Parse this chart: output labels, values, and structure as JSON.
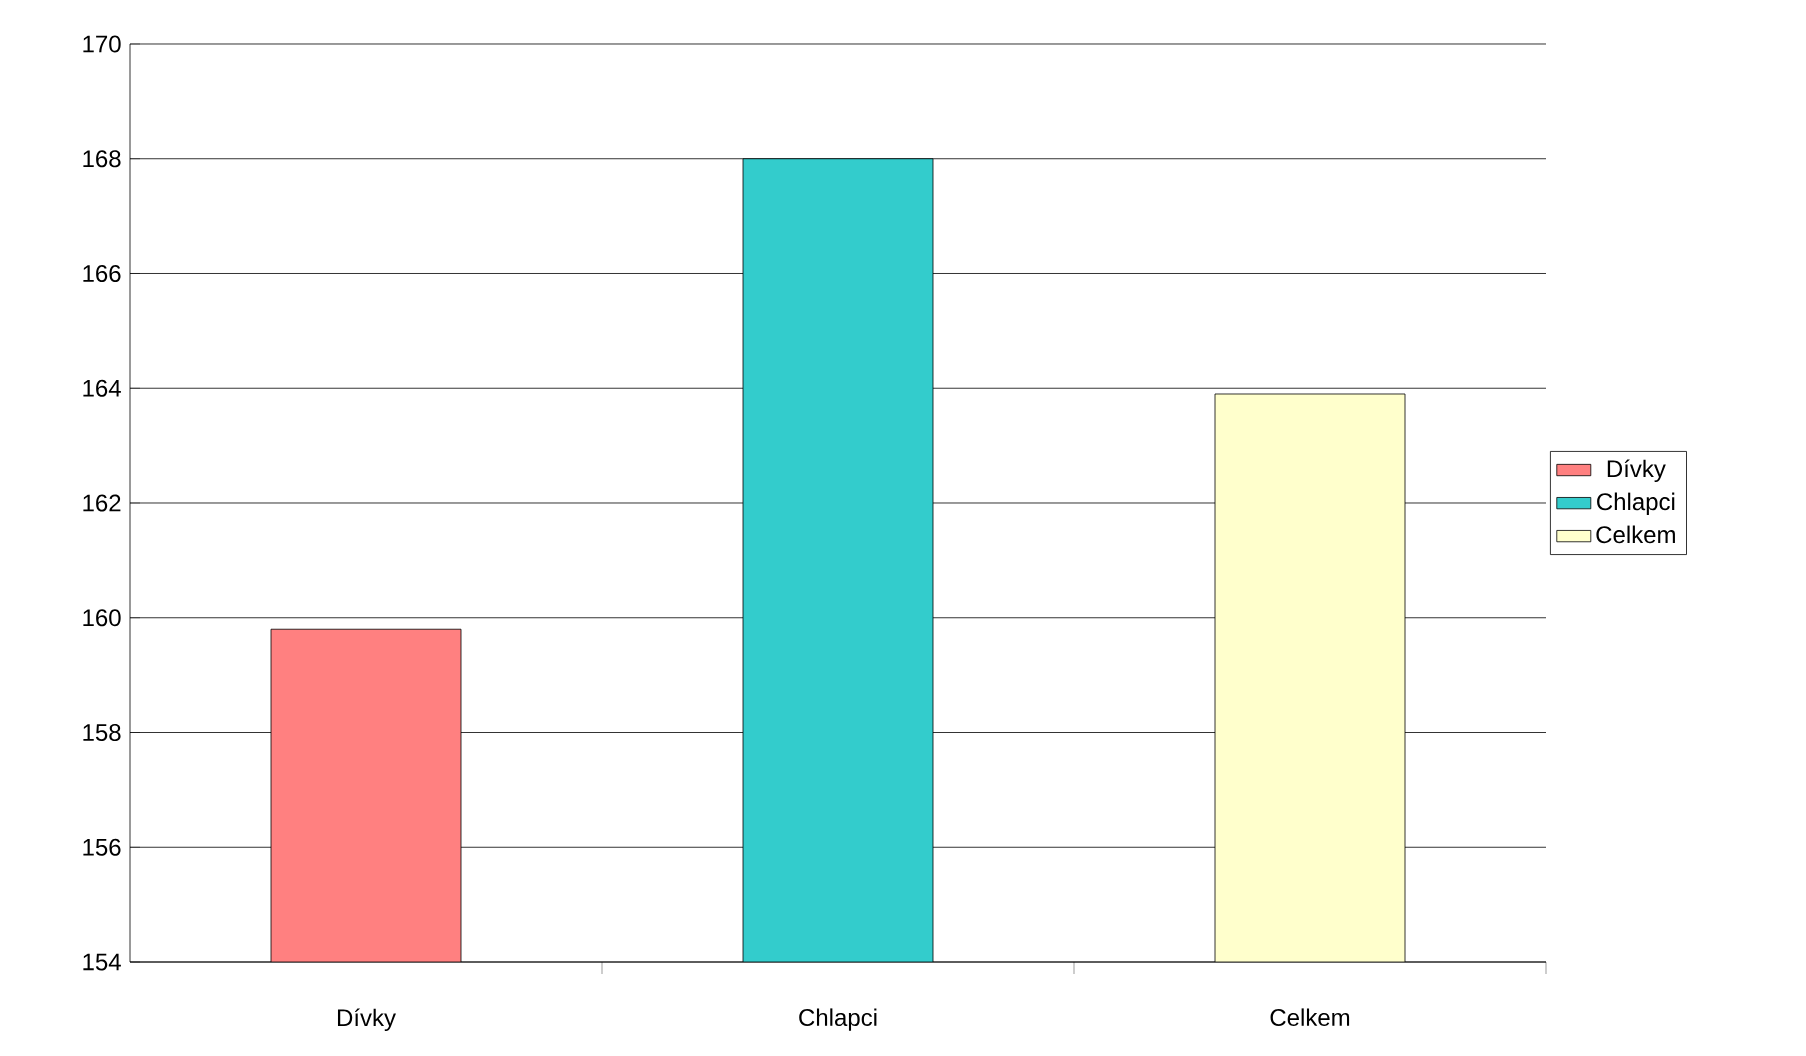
{
  "chart_data": {
    "type": "bar",
    "categories": [
      "Dívky",
      "Chlapci",
      "Celkem"
    ],
    "series": [
      {
        "name": "Dívky",
        "color": "#ff8080",
        "values": [
          159.8,
          null,
          null
        ]
      },
      {
        "name": "Chlapci",
        "color": "#33cccc",
        "values": [
          null,
          168.0,
          null
        ]
      },
      {
        "name": "Celkem",
        "color": "#ffffcc",
        "values": [
          null,
          null,
          163.9
        ]
      }
    ],
    "ylim": [
      154,
      170
    ],
    "yticks": [
      154,
      156,
      158,
      160,
      162,
      164,
      166,
      168,
      170
    ],
    "grid": "y",
    "legend": "right"
  }
}
